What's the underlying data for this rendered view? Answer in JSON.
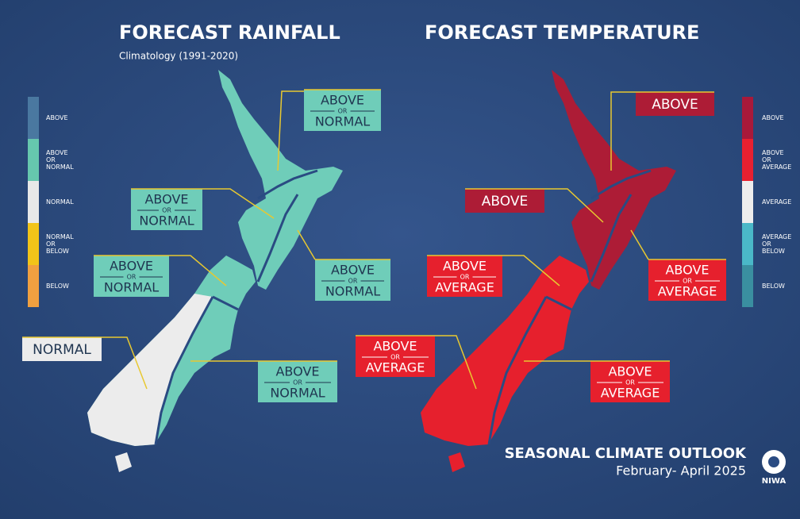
{
  "rainfall": {
    "title": "FORECAST RAINFALL",
    "subtitle": "Climatology (1991-2020)",
    "legend": [
      {
        "lines": [
          "ABOVE"
        ],
        "color": "#4a78a0"
      },
      {
        "lines": [
          "ABOVE",
          "OR",
          "NORMAL"
        ],
        "color": "#66c7ae"
      },
      {
        "lines": [
          "NORMAL"
        ],
        "color": "#e8e8e8"
      },
      {
        "lines": [
          "NORMAL",
          "OR",
          "BELOW"
        ],
        "color": "#f2c419"
      },
      {
        "lines": [
          "BELOW"
        ],
        "color": "#f0a040"
      }
    ],
    "regions": [
      {
        "lines": [
          "ABOVE",
          "OR",
          "NORMAL"
        ],
        "color": "#6fcdb9"
      },
      {
        "lines": [
          "ABOVE",
          "OR",
          "NORMAL"
        ],
        "color": "#6fcdb9"
      },
      {
        "lines": [
          "ABOVE",
          "OR",
          "NORMAL"
        ],
        "color": "#6fcdb9"
      },
      {
        "lines": [
          "ABOVE",
          "OR",
          "NORMAL"
        ],
        "color": "#6fcdb9"
      },
      {
        "lines": [
          "NORMAL"
        ],
        "color": "#ececec"
      },
      {
        "lines": [
          "ABOVE",
          "OR",
          "NORMAL"
        ],
        "color": "#6fcdb9"
      }
    ]
  },
  "temperature": {
    "title": "FORECAST TEMPERATURE",
    "legend": [
      {
        "lines": [
          "ABOVE"
        ],
        "color": "#a8193a"
      },
      {
        "lines": [
          "ABOVE",
          "OR",
          "AVERAGE"
        ],
        "color": "#e82030"
      },
      {
        "lines": [
          "AVERAGE"
        ],
        "color": "#ededed"
      },
      {
        "lines": [
          "AVERAGE",
          "OR",
          "BELOW"
        ],
        "color": "#4ab8c8"
      },
      {
        "lines": [
          "BELOW"
        ],
        "color": "#3a8fa0"
      }
    ],
    "regions": [
      {
        "lines": [
          "ABOVE"
        ],
        "color": "#ad1c36"
      },
      {
        "lines": [
          "ABOVE"
        ],
        "color": "#ad1c36"
      },
      {
        "lines": [
          "ABOVE",
          "OR",
          "AVERAGE"
        ],
        "color": "#e6202d"
      },
      {
        "lines": [
          "ABOVE",
          "OR",
          "AVERAGE"
        ],
        "color": "#e6202d"
      },
      {
        "lines": [
          "ABOVE",
          "OR",
          "AVERAGE"
        ],
        "color": "#e6202d"
      },
      {
        "lines": [
          "ABOVE",
          "OR",
          "AVERAGE"
        ],
        "color": "#e6202d"
      }
    ]
  },
  "footer": {
    "title": "SEASONAL CLIMATE OUTLOOK",
    "period": "February- April 2025",
    "logo": "NIWA"
  }
}
